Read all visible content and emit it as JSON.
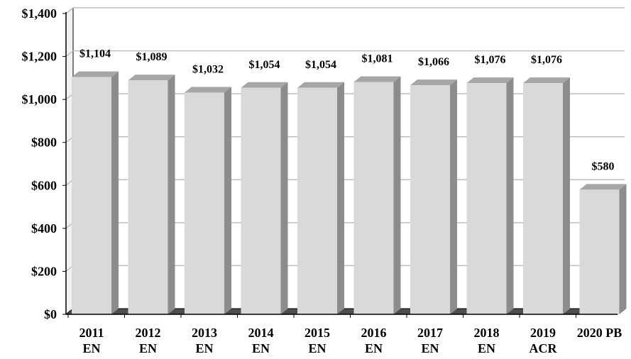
{
  "chart_data": {
    "type": "bar",
    "title": "",
    "xlabel": "",
    "ylabel": "",
    "ylim": [
      0,
      1400
    ],
    "y_ticks": [
      "$0",
      "$200",
      "$400",
      "$600",
      "$800",
      "$1,000",
      "$1,200",
      "$1,400"
    ],
    "y_tick_values": [
      0,
      200,
      400,
      600,
      800,
      1000,
      1200,
      1400
    ],
    "categories": [
      {
        "line1": "2011",
        "line2": "EN"
      },
      {
        "line1": "2012",
        "line2": "EN"
      },
      {
        "line1": "2013",
        "line2": "EN"
      },
      {
        "line1": "2014",
        "line2": "EN"
      },
      {
        "line1": "2015",
        "line2": "EN"
      },
      {
        "line1": "2016",
        "line2": "EN"
      },
      {
        "line1": "2017",
        "line2": "EN"
      },
      {
        "line1": "2018",
        "line2": "EN"
      },
      {
        "line1": "2019",
        "line2": "ACR"
      },
      {
        "line1": "2020 PB",
        "line2": ""
      }
    ],
    "values": [
      1104,
      1089,
      1032,
      1054,
      1054,
      1081,
      1066,
      1076,
      1076,
      580
    ],
    "data_labels": [
      "$1,104",
      "$1,089",
      "$1,032",
      "$1,054",
      "$1,054",
      "$1,081",
      "$1,066",
      "$1,076",
      "$1,076",
      "$580"
    ],
    "grid": true,
    "style": "3d-column",
    "colors": {
      "bar_front": "#d9d9d9",
      "bar_side": "#8c8c8c",
      "bar_top": "#a6a6a6",
      "gridline": "#bfbfbf",
      "axis": "#000000",
      "back_wall": "#d9d9d9"
    }
  }
}
